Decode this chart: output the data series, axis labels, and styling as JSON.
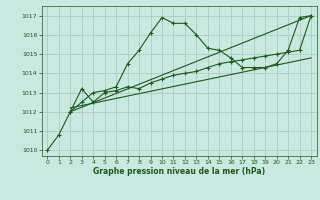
{
  "title": "Graphe pression niveau de la mer (hPa)",
  "bg_color": "#c8e8e0",
  "grid_color": "#a8ccc4",
  "line_color": "#1a5c1a",
  "xlim": [
    -0.5,
    23.5
  ],
  "ylim": [
    1009.7,
    1017.5
  ],
  "yticks": [
    1010,
    1011,
    1012,
    1013,
    1014,
    1015,
    1016,
    1017
  ],
  "xticks": [
    0,
    1,
    2,
    3,
    4,
    5,
    6,
    7,
    8,
    9,
    10,
    11,
    12,
    13,
    14,
    15,
    16,
    17,
    18,
    19,
    20,
    21,
    22,
    23
  ],
  "series1_x": [
    0,
    1,
    2,
    3,
    4,
    5,
    6,
    7,
    8,
    9,
    10,
    11,
    12,
    13,
    14,
    15,
    16,
    17,
    18,
    19,
    20,
    21,
    22,
    23
  ],
  "series1_y": [
    1010.0,
    1010.8,
    1012.0,
    1012.5,
    1013.0,
    1013.1,
    1013.3,
    1014.5,
    1015.2,
    1016.1,
    1016.9,
    1016.6,
    1016.6,
    1016.0,
    1015.3,
    1015.2,
    1014.8,
    1014.3,
    1014.3,
    1014.3,
    1014.5,
    1015.2,
    1016.9,
    1017.0
  ],
  "series2_x": [
    2,
    3,
    4,
    5,
    6,
    7,
    8,
    9,
    10,
    11,
    12,
    13,
    14,
    15,
    16,
    17,
    18,
    19,
    20,
    21,
    22,
    23
  ],
  "series2_y": [
    1012.0,
    1013.2,
    1012.5,
    1013.0,
    1013.1,
    1013.3,
    1013.2,
    1013.5,
    1013.7,
    1013.9,
    1014.0,
    1014.1,
    1014.3,
    1014.5,
    1014.6,
    1014.7,
    1014.8,
    1014.9,
    1015.0,
    1015.1,
    1015.2,
    1017.0
  ],
  "series3_x": [
    2,
    23
  ],
  "series3_y": [
    1012.0,
    1017.0
  ],
  "series4_x": [
    2,
    23
  ],
  "series4_y": [
    1012.2,
    1014.8
  ]
}
